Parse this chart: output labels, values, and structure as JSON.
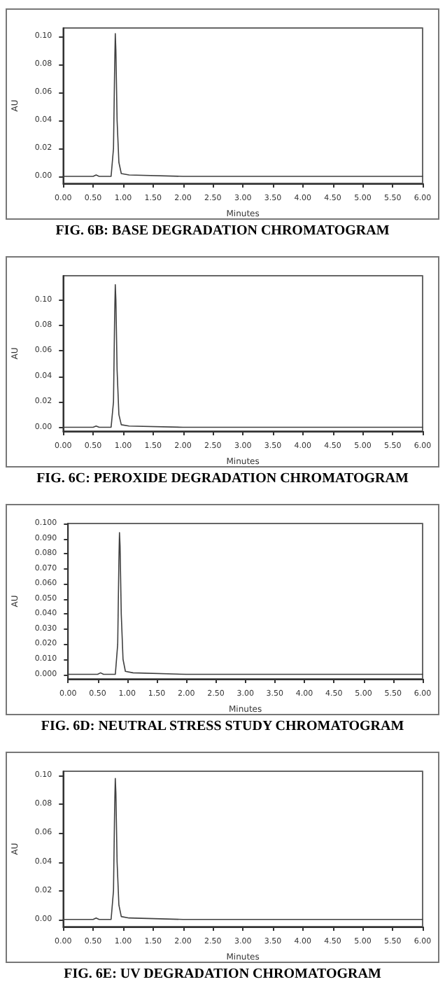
{
  "chart_data": [
    {
      "type": "line",
      "title": "FIG. 6B: BASE DEGRADATION CHROMATOGRAM",
      "xlabel": "Minutes",
      "ylabel": "AU",
      "marker": "none",
      "line_style": "solid",
      "x": [
        0,
        0.5,
        0.55,
        0.6,
        0.8,
        0.84,
        0.86,
        0.87,
        0.88,
        0.9,
        0.93,
        0.97,
        1.1,
        2,
        6
      ],
      "series": [
        {
          "color": "#404040",
          "values": [
            0,
            0,
            0.001,
            0,
            0,
            0.02,
            0.08,
            0.102,
            0.09,
            0.04,
            0.01,
            0.002,
            0.001,
            0,
            0
          ]
        }
      ],
      "xlim": [
        0,
        6
      ],
      "ylim": [
        -0.005,
        0.106
      ],
      "xticks": [
        {
          "value": 0,
          "label": "0.00"
        },
        {
          "value": 0.5,
          "label": "0.50"
        },
        {
          "value": 1,
          "label": "1.00"
        },
        {
          "value": 1.5,
          "label": "1.50"
        },
        {
          "value": 2,
          "label": "2.00"
        },
        {
          "value": 2.5,
          "label": "2.50"
        },
        {
          "value": 3,
          "label": "3.00"
        },
        {
          "value": 3.5,
          "label": "3.50"
        },
        {
          "value": 4,
          "label": "4.00"
        },
        {
          "value": 4.5,
          "label": "4.50"
        },
        {
          "value": 5,
          "label": "5.00"
        },
        {
          "value": 5.5,
          "label": "5.50"
        },
        {
          "value": 6,
          "label": "6.00"
        }
      ],
      "yticks": [
        {
          "value": 0,
          "label": "0.00"
        },
        {
          "value": 0.02,
          "label": "0.02"
        },
        {
          "value": 0.04,
          "label": "0.04"
        },
        {
          "value": 0.06,
          "label": "0.06"
        },
        {
          "value": 0.08,
          "label": "0.08"
        },
        {
          "value": 0.1,
          "label": "0.10"
        }
      ]
    },
    {
      "type": "line",
      "title": "FIG. 6C: PEROXIDE DEGRADATION CHROMATOGRAM",
      "xlabel": "Minutes",
      "ylabel": "AU",
      "marker": "none",
      "line_style": "solid",
      "x": [
        0,
        0.5,
        0.55,
        0.6,
        0.8,
        0.84,
        0.86,
        0.87,
        0.88,
        0.9,
        0.93,
        0.97,
        1.1,
        2,
        6
      ],
      "series": [
        {
          "color": "#404040",
          "values": [
            0,
            0,
            0.001,
            0,
            0,
            0.02,
            0.09,
            0.112,
            0.1,
            0.045,
            0.01,
            0.002,
            0.001,
            0,
            0
          ]
        }
      ],
      "xlim": [
        0,
        6
      ],
      "ylim": [
        -0.003,
        0.119
      ],
      "xticks": [
        {
          "value": 0,
          "label": "0.00"
        },
        {
          "value": 0.5,
          "label": "0.50"
        },
        {
          "value": 1,
          "label": "1.00"
        },
        {
          "value": 1.5,
          "label": "1.50"
        },
        {
          "value": 2,
          "label": "2.00"
        },
        {
          "value": 2.5,
          "label": "2.50"
        },
        {
          "value": 3,
          "label": "3.00"
        },
        {
          "value": 3.5,
          "label": "3.50"
        },
        {
          "value": 4,
          "label": "4.00"
        },
        {
          "value": 4.5,
          "label": "4.50"
        },
        {
          "value": 5,
          "label": "5.00"
        },
        {
          "value": 5.5,
          "label": "5.50"
        },
        {
          "value": 6,
          "label": "6.00"
        }
      ],
      "yticks": [
        {
          "value": 0,
          "label": "0.00"
        },
        {
          "value": 0.02,
          "label": "0.02"
        },
        {
          "value": 0.04,
          "label": "0.04"
        },
        {
          "value": 0.06,
          "label": "0.06"
        },
        {
          "value": 0.08,
          "label": "0.08"
        },
        {
          "value": 0.1,
          "label": "0.10"
        }
      ]
    },
    {
      "type": "line",
      "title": "FIG. 6D: NEUTRAL STRESS STUDY CHROMATOGRAM",
      "xlabel": "Minutes",
      "ylabel": "AU",
      "marker": "none",
      "line_style": "solid",
      "x": [
        0,
        0.5,
        0.55,
        0.6,
        0.8,
        0.84,
        0.86,
        0.87,
        0.88,
        0.9,
        0.93,
        0.97,
        1.1,
        2,
        6
      ],
      "series": [
        {
          "color": "#404040",
          "values": [
            0,
            0,
            0.001,
            0,
            0,
            0.02,
            0.075,
            0.094,
            0.085,
            0.04,
            0.01,
            0.002,
            0.001,
            0,
            0
          ]
        }
      ],
      "xlim": [
        0,
        6
      ],
      "ylim": [
        -0.003,
        0.1
      ],
      "xticks": [
        {
          "value": 0,
          "label": "0.00"
        },
        {
          "value": 0.5,
          "label": "0.50"
        },
        {
          "value": 1,
          "label": "1.00"
        },
        {
          "value": 1.5,
          "label": "1.50"
        },
        {
          "value": 2,
          "label": "2.00"
        },
        {
          "value": 2.5,
          "label": "2.50"
        },
        {
          "value": 3,
          "label": "3.00"
        },
        {
          "value": 3.5,
          "label": "3.50"
        },
        {
          "value": 4,
          "label": "4.00"
        },
        {
          "value": 4.5,
          "label": "4.50"
        },
        {
          "value": 5,
          "label": "5.00"
        },
        {
          "value": 5.5,
          "label": "5.50"
        },
        {
          "value": 6,
          "label": "6.00"
        }
      ],
      "yticks": [
        {
          "value": 0,
          "label": "0.000"
        },
        {
          "value": 0.01,
          "label": "0.010"
        },
        {
          "value": 0.02,
          "label": "0.020"
        },
        {
          "value": 0.03,
          "label": "0.030"
        },
        {
          "value": 0.04,
          "label": "0.040"
        },
        {
          "value": 0.05,
          "label": "0.050"
        },
        {
          "value": 0.06,
          "label": "0.060"
        },
        {
          "value": 0.07,
          "label": "0.070"
        },
        {
          "value": 0.08,
          "label": "0.080"
        },
        {
          "value": 0.09,
          "label": "0.090"
        },
        {
          "value": 0.1,
          "label": "0.100"
        }
      ]
    },
    {
      "type": "line",
      "title": "FIG. 6E: UV DEGRADATION CHROMATOGRAM",
      "xlabel": "Minutes",
      "ylabel": "AU",
      "marker": "none",
      "line_style": "solid",
      "x": [
        0,
        0.5,
        0.55,
        0.6,
        0.8,
        0.84,
        0.86,
        0.87,
        0.88,
        0.9,
        0.93,
        0.97,
        1.1,
        2,
        6
      ],
      "series": [
        {
          "color": "#404040",
          "values": [
            0,
            0,
            0.001,
            0,
            0,
            0.02,
            0.08,
            0.098,
            0.088,
            0.04,
            0.01,
            0.002,
            0.001,
            0,
            0
          ]
        }
      ],
      "xlim": [
        0,
        6
      ],
      "ylim": [
        -0.005,
        0.103
      ],
      "xticks": [
        {
          "value": 0,
          "label": "0.00"
        },
        {
          "value": 0.5,
          "label": "0.50"
        },
        {
          "value": 1,
          "label": "1.00"
        },
        {
          "value": 1.5,
          "label": "1.50"
        },
        {
          "value": 2,
          "label": "2.00"
        },
        {
          "value": 2.5,
          "label": "2.50"
        },
        {
          "value": 3,
          "label": "3.00"
        },
        {
          "value": 3.5,
          "label": "3.50"
        },
        {
          "value": 4,
          "label": "4.00"
        },
        {
          "value": 4.5,
          "label": "4.50"
        },
        {
          "value": 5,
          "label": "5.00"
        },
        {
          "value": 5.5,
          "label": "5.50"
        },
        {
          "value": 6,
          "label": "6.00"
        }
      ],
      "yticks": [
        {
          "value": 0,
          "label": "0.00"
        },
        {
          "value": 0.02,
          "label": "0.02"
        },
        {
          "value": 0.04,
          "label": "0.04"
        },
        {
          "value": 0.06,
          "label": "0.06"
        },
        {
          "value": 0.08,
          "label": "0.08"
        },
        {
          "value": 0.1,
          "label": "0.10"
        }
      ]
    }
  ]
}
